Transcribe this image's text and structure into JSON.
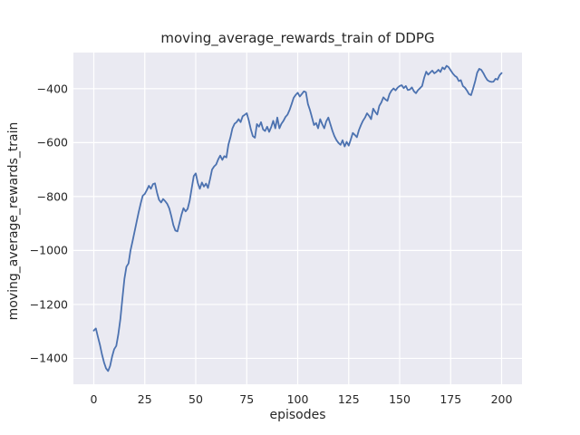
{
  "chart_data": {
    "type": "line",
    "title": "moving_average_rewards_train of DDPG",
    "xlabel": "episodes",
    "ylabel": "moving_average_rewards_train",
    "x_ticks": [
      0,
      25,
      50,
      75,
      100,
      125,
      150,
      175,
      200
    ],
    "y_ticks": [
      -400,
      -600,
      -800,
      -1000,
      -1200,
      -1400
    ],
    "xlim": [
      -10,
      210
    ],
    "ylim": [
      -1496,
      -266
    ],
    "grid": true,
    "legend": false,
    "colors": {
      "line": "#4c72b0",
      "axes_background": "#eaeaf2",
      "grid": "#ffffff",
      "figure_background": "#ffffff",
      "text": "#262626"
    },
    "series": [
      {
        "name": "moving_average_rewards_train",
        "x": [
          0,
          1,
          2,
          3,
          4,
          5,
          6,
          7,
          8,
          9,
          10,
          11,
          12,
          13,
          14,
          15,
          16,
          17,
          18,
          19,
          20,
          21,
          22,
          23,
          24,
          25,
          26,
          27,
          28,
          29,
          30,
          31,
          32,
          33,
          34,
          35,
          36,
          37,
          38,
          39,
          40,
          41,
          42,
          43,
          44,
          45,
          46,
          47,
          48,
          49,
          50,
          51,
          52,
          53,
          54,
          55,
          56,
          57,
          58,
          59,
          60,
          61,
          62,
          63,
          64,
          65,
          66,
          67,
          68,
          69,
          70,
          71,
          72,
          73,
          74,
          75,
          76,
          77,
          78,
          79,
          80,
          81,
          82,
          83,
          84,
          85,
          86,
          87,
          88,
          89,
          90,
          91,
          92,
          93,
          94,
          95,
          96,
          97,
          98,
          99,
          100,
          101,
          102,
          103,
          104,
          105,
          106,
          107,
          108,
          109,
          110,
          111,
          112,
          113,
          114,
          115,
          116,
          117,
          118,
          119,
          120,
          121,
          122,
          123,
          124,
          125,
          126,
          127,
          128,
          129,
          130,
          131,
          132,
          133,
          134,
          135,
          136,
          137,
          138,
          139,
          140,
          141,
          142,
          143,
          144,
          145,
          146,
          147,
          148,
          149,
          150,
          151,
          152,
          153,
          154,
          155,
          156,
          157,
          158,
          159,
          160,
          161,
          162,
          163,
          164,
          165,
          166,
          167,
          168,
          169,
          170,
          171,
          172,
          173,
          174,
          175,
          176,
          177,
          178,
          179,
          180,
          181,
          182,
          183,
          184,
          185,
          186,
          187,
          188,
          189,
          190,
          191,
          192,
          193,
          194,
          195,
          196,
          197,
          198,
          199,
          200
        ],
        "y": [
          -1297,
          -1289,
          -1320,
          -1350,
          -1385,
          -1415,
          -1437,
          -1447,
          -1428,
          -1392,
          -1366,
          -1354,
          -1312,
          -1255,
          -1180,
          -1105,
          -1060,
          -1048,
          -1000,
          -965,
          -930,
          -893,
          -858,
          -825,
          -797,
          -790,
          -776,
          -760,
          -771,
          -754,
          -751,
          -786,
          -812,
          -822,
          -809,
          -817,
          -827,
          -844,
          -872,
          -906,
          -926,
          -929,
          -899,
          -867,
          -843,
          -855,
          -846,
          -815,
          -770,
          -724,
          -714,
          -750,
          -771,
          -748,
          -763,
          -752,
          -768,
          -735,
          -700,
          -688,
          -681,
          -662,
          -648,
          -664,
          -650,
          -655,
          -608,
          -580,
          -547,
          -530,
          -524,
          -513,
          -524,
          -502,
          -497,
          -491,
          -517,
          -551,
          -576,
          -582,
          -531,
          -541,
          -524,
          -551,
          -557,
          -541,
          -560,
          -542,
          -519,
          -547,
          -507,
          -547,
          -530,
          -519,
          -505,
          -496,
          -479,
          -457,
          -434,
          -423,
          -415,
          -429,
          -420,
          -410,
          -413,
          -457,
          -479,
          -507,
          -535,
          -527,
          -547,
          -513,
          -531,
          -547,
          -521,
          -507,
          -531,
          -556,
          -576,
          -591,
          -601,
          -608,
          -591,
          -614,
          -597,
          -611,
          -589,
          -564,
          -571,
          -580,
          -554,
          -535,
          -519,
          -507,
          -491,
          -501,
          -513,
          -474,
          -486,
          -496,
          -464,
          -451,
          -432,
          -440,
          -445,
          -420,
          -407,
          -399,
          -406,
          -396,
          -390,
          -387,
          -398,
          -390,
          -405,
          -403,
          -395,
          -410,
          -417,
          -405,
          -398,
          -390,
          -360,
          -337,
          -348,
          -340,
          -333,
          -343,
          -338,
          -330,
          -338,
          -321,
          -328,
          -315,
          -320,
          -332,
          -343,
          -352,
          -357,
          -372,
          -368,
          -390,
          -396,
          -407,
          -420,
          -424,
          -400,
          -373,
          -341,
          -326,
          -330,
          -342,
          -356,
          -368,
          -373,
          -375,
          -374,
          -363,
          -366,
          -350,
          -342
        ]
      }
    ]
  }
}
